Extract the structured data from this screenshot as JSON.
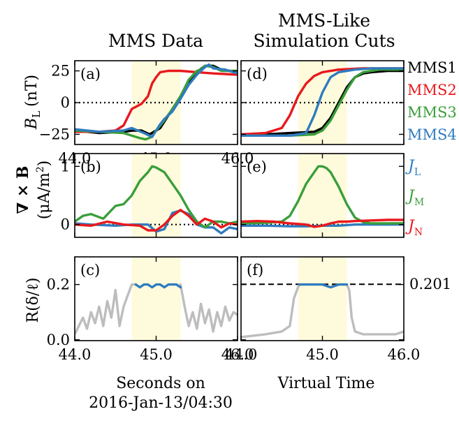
{
  "titles": {
    "left": "MMS Data",
    "right_line1": "MMS-Like",
    "right_line2": "Simulation Cuts"
  },
  "ylabels": {
    "a": "B",
    "a_sub": "L",
    "a_unit": "(nT)",
    "b": "∇ × B",
    "b_unit": "(μA/m",
    "b_unit_sup": "2",
    "b_unit_close": ")",
    "c": "R(δ/ℓ)"
  },
  "xlabels": {
    "left_line1": "Seconds on",
    "left_line2": "2016-Jan-13/04:30",
    "right": "Virtual Time"
  },
  "legend_spacecraft": [
    {
      "label": "MMS1",
      "color": "#000000"
    },
    {
      "label": "MMS2",
      "color": "#e8191c"
    },
    {
      "label": "MMS3",
      "color": "#3a9e3a"
    },
    {
      "label": "MMS4",
      "color": "#2f7bbf"
    }
  ],
  "legend_currents": [
    {
      "sym": "J",
      "sub": "L",
      "color": "#2f7bbf"
    },
    {
      "sym": "J",
      "sub": "M",
      "color": "#3a9e3a"
    },
    {
      "sym": "J",
      "sub": "N",
      "color": "#e8191c"
    }
  ],
  "chart_data": [
    {
      "panel": "a",
      "type": "line",
      "title": "MMS Data",
      "ylabel": "B_L (nT)",
      "xlim": [
        44.0,
        46.0
      ],
      "ylim": [
        -33,
        33
      ],
      "yticks": [
        -25,
        0,
        25
      ],
      "ytick_labels": [
        "−25",
        "0",
        "25"
      ],
      "xticks": [
        44.0,
        45.0,
        46.0
      ],
      "xtick_labels": [
        "44.0",
        "45.0",
        "46.0"
      ],
      "highlight_span": [
        44.7,
        45.3
      ],
      "reference_line": 0,
      "series": [
        {
          "name": "MMS1",
          "color": "#000000",
          "x": [
            44.0,
            44.3,
            44.6,
            44.72,
            44.82,
            44.92,
            45.0,
            45.05,
            45.1,
            45.2,
            45.3,
            45.4,
            45.5,
            45.6,
            45.7,
            45.8,
            46.0
          ],
          "y": [
            -22,
            -24,
            -23,
            -22,
            -22,
            -25,
            -22,
            -20,
            -15,
            -5,
            5,
            15,
            24,
            29,
            29,
            26,
            24
          ]
        },
        {
          "name": "MMS2",
          "color": "#e8191c",
          "x": [
            44.0,
            44.3,
            44.5,
            44.6,
            44.7,
            44.82,
            44.9,
            44.95,
            45.0,
            45.05,
            45.15,
            45.3,
            45.5,
            45.7,
            46.0
          ],
          "y": [
            -23,
            -23,
            -22,
            -18,
            -5,
            -1,
            5,
            15,
            20,
            24,
            25,
            25,
            24,
            23,
            22
          ]
        },
        {
          "name": "MMS3",
          "color": "#3a9e3a",
          "x": [
            44.0,
            44.3,
            44.6,
            44.7,
            44.8,
            44.87,
            44.95,
            45.0,
            45.1,
            45.2,
            45.3,
            45.4,
            45.5,
            45.55,
            45.6,
            45.7,
            45.8,
            46.0
          ],
          "y": [
            -22,
            -23,
            -24,
            -26,
            -28,
            -29,
            -27,
            -22,
            -14,
            -5,
            5,
            18,
            25,
            26,
            29,
            28,
            25,
            25
          ]
        },
        {
          "name": "MMS4",
          "color": "#2f7bbf",
          "x": [
            44.0,
            44.3,
            44.6,
            44.7,
            44.85,
            44.95,
            45.0,
            45.05,
            45.1,
            45.2,
            45.3,
            45.4,
            45.5,
            45.6,
            45.65,
            45.7,
            45.85,
            46.0
          ],
          "y": [
            -21,
            -23,
            -22,
            -20,
            -24,
            -27,
            -22,
            -17,
            -13,
            -7,
            3,
            14,
            22,
            28,
            30,
            27,
            26,
            23
          ]
        }
      ]
    },
    {
      "panel": "b",
      "type": "line",
      "ylabel": "∇ × B (μA/m²)",
      "xlim": [
        44.0,
        46.0
      ],
      "ylim": [
        -0.22,
        1.22
      ],
      "yticks": [
        0,
        1
      ],
      "ytick_labels": [
        "0",
        "1"
      ],
      "xticks": [
        44.0,
        45.0,
        46.0
      ],
      "highlight_span": [
        44.7,
        45.3
      ],
      "reference_line": 0,
      "series": [
        {
          "name": "J_L",
          "color": "#2f7bbf",
          "x": [
            44.0,
            44.2,
            44.5,
            44.7,
            44.9,
            45.0,
            45.1,
            45.2,
            45.3,
            45.4,
            45.5,
            45.6,
            45.7,
            45.8,
            45.9,
            46.0
          ],
          "y": [
            0.02,
            0.0,
            -0.02,
            0.0,
            0.0,
            -0.12,
            -0.08,
            0.2,
            0.24,
            0.18,
            0.0,
            -0.05,
            -0.05,
            -0.15,
            -0.05,
            -0.08
          ]
        },
        {
          "name": "J_M",
          "color": "#3a9e3a",
          "x": [
            44.0,
            44.1,
            44.2,
            44.35,
            44.5,
            44.6,
            44.7,
            44.8,
            44.9,
            44.95,
            45.0,
            45.1,
            45.2,
            45.3,
            45.4,
            45.5,
            45.6,
            45.7,
            45.8,
            45.9,
            46.0
          ],
          "y": [
            0.05,
            0.15,
            0.18,
            0.1,
            0.32,
            0.35,
            0.5,
            0.75,
            0.9,
            1.0,
            0.98,
            0.9,
            0.7,
            0.5,
            0.25,
            0.05,
            -0.05,
            0.05,
            0.05,
            0.02,
            0.05
          ]
        },
        {
          "name": "J_N",
          "color": "#e8191c",
          "x": [
            44.0,
            44.2,
            44.4,
            44.6,
            44.8,
            44.9,
            45.0,
            45.1,
            45.2,
            45.3,
            45.4,
            45.5,
            45.6,
            45.7,
            45.8,
            45.9,
            46.0
          ],
          "y": [
            0.0,
            -0.02,
            0.05,
            0.0,
            -0.02,
            -0.1,
            -0.1,
            0.0,
            0.15,
            0.25,
            0.15,
            0.0,
            0.1,
            0.05,
            -0.05,
            0.02,
            0.0
          ]
        }
      ]
    },
    {
      "panel": "c",
      "type": "line",
      "ylabel": "R(δ/ℓ)",
      "xlim": [
        44.0,
        46.0
      ],
      "ylim": [
        -0.003,
        0.3
      ],
      "yticks": [
        0.0,
        0.2
      ],
      "ytick_labels": [
        "0.0",
        "0.2"
      ],
      "xticks": [
        44.0,
        45.0,
        46.0
      ],
      "xtick_labels": [
        "44.0",
        "45.0",
        "46.0"
      ],
      "xlabel": "Seconds on 2016-Jan-13/04:30",
      "highlight_span": [
        44.7,
        45.3
      ],
      "series": [
        {
          "name": "outside",
          "color": "#bdbdbd",
          "x": [
            44.0,
            44.05,
            44.1,
            44.15,
            44.2,
            44.25,
            44.3,
            44.35,
            44.4,
            44.45,
            44.5,
            44.55,
            44.6,
            44.65,
            44.7,
            44.75
          ],
          "y": [
            0.02,
            0.05,
            0.08,
            0.04,
            0.1,
            0.06,
            0.12,
            0.05,
            0.14,
            0.08,
            0.18,
            0.05,
            0.12,
            0.16,
            0.2,
            0.2
          ]
        },
        {
          "name": "outside_late",
          "color": "#bdbdbd",
          "x": [
            45.3,
            45.35,
            45.4,
            45.45,
            45.5,
            45.55,
            45.6,
            45.65,
            45.7,
            45.75,
            45.8,
            45.85,
            45.9,
            45.95,
            46.0
          ],
          "y": [
            0.2,
            0.12,
            0.05,
            0.1,
            0.04,
            0.13,
            0.06,
            0.11,
            0.03,
            0.1,
            0.05,
            0.12,
            0.07,
            0.1,
            0.09
          ]
        },
        {
          "name": "inside",
          "color": "#2f7bbf",
          "x": [
            44.75,
            44.8,
            44.85,
            44.9,
            44.95,
            45.0,
            45.05,
            45.1,
            45.15,
            45.2,
            45.25,
            45.3
          ],
          "y": [
            0.2,
            0.19,
            0.2,
            0.2,
            0.19,
            0.2,
            0.2,
            0.19,
            0.2,
            0.2,
            0.2,
            0.19
          ]
        }
      ]
    },
    {
      "panel": "d",
      "type": "line",
      "title": "MMS-Like Simulation Cuts",
      "xlim": [
        44.0,
        46.0
      ],
      "ylim": [
        -33,
        33
      ],
      "yticks": [
        -25,
        0,
        25
      ],
      "xticks": [
        44.0,
        45.0,
        46.0
      ],
      "highlight_span": [
        44.7,
        45.3
      ],
      "reference_line": 0,
      "series": [
        {
          "name": "MMS1",
          "color": "#000000",
          "x": [
            44.0,
            44.3,
            44.6,
            44.9,
            45.0,
            45.1,
            45.2,
            45.3,
            45.4,
            45.5,
            45.6,
            45.8,
            46.0
          ],
          "y": [
            -25,
            -25,
            -24,
            -23,
            -20,
            -12,
            0,
            12,
            20,
            23,
            24,
            25,
            25
          ]
        },
        {
          "name": "MMS2",
          "color": "#e8191c",
          "x": [
            44.0,
            44.3,
            44.5,
            44.6,
            44.7,
            44.8,
            44.9,
            45.0,
            45.2,
            45.5,
            46.0
          ],
          "y": [
            -25,
            -24,
            -20,
            -10,
            5,
            15,
            21,
            24,
            26,
            27,
            27
          ]
        },
        {
          "name": "MMS3",
          "color": "#3a9e3a",
          "x": [
            44.0,
            44.3,
            44.6,
            44.9,
            45.0,
            45.1,
            45.2,
            45.3,
            45.4,
            45.5,
            45.7,
            46.0
          ],
          "y": [
            -26,
            -26,
            -26,
            -25,
            -22,
            -14,
            -2,
            10,
            20,
            24,
            26,
            26
          ]
        },
        {
          "name": "MMS4",
          "color": "#2f7bbf",
          "x": [
            44.0,
            44.3,
            44.6,
            44.8,
            44.9,
            45.0,
            45.1,
            45.2,
            45.4,
            45.6,
            46.0
          ],
          "y": [
            -26,
            -26,
            -26,
            -24,
            -10,
            8,
            20,
            24,
            26,
            27,
            27
          ]
        }
      ]
    },
    {
      "panel": "e",
      "type": "line",
      "xlim": [
        44.0,
        46.0
      ],
      "ylim": [
        -0.22,
        1.22
      ],
      "yticks": [
        0,
        1
      ],
      "xticks": [
        44.0,
        45.0,
        46.0
      ],
      "highlight_span": [
        44.7,
        45.3
      ],
      "reference_line": 0,
      "series": [
        {
          "name": "J_L",
          "color": "#2f7bbf",
          "x": [
            44.0,
            44.3,
            44.6,
            44.8,
            45.0,
            45.2,
            45.4,
            45.6,
            46.0
          ],
          "y": [
            -0.02,
            -0.02,
            -0.03,
            -0.03,
            -0.02,
            -0.02,
            0.0,
            0.0,
            0.0
          ]
        },
        {
          "name": "J_M",
          "color": "#3a9e3a",
          "x": [
            44.0,
            44.3,
            44.5,
            44.6,
            44.7,
            44.8,
            44.9,
            44.95,
            45.0,
            45.05,
            45.1,
            45.2,
            45.3,
            45.4,
            45.5,
            45.6,
            45.8,
            46.0
          ],
          "y": [
            0.02,
            0.03,
            0.05,
            0.15,
            0.4,
            0.7,
            0.9,
            1.0,
            1.0,
            0.97,
            0.9,
            0.65,
            0.35,
            0.12,
            0.04,
            0.02,
            0.02,
            0.02
          ]
        },
        {
          "name": "J_N",
          "color": "#e8191c",
          "x": [
            44.0,
            44.2,
            44.4,
            44.6,
            44.8,
            44.9,
            45.0,
            45.1,
            45.2,
            45.3,
            45.4,
            45.6,
            45.8,
            46.0
          ],
          "y": [
            0.05,
            0.06,
            0.05,
            0.02,
            0.0,
            -0.04,
            -0.02,
            0.02,
            0.05,
            0.05,
            0.06,
            0.07,
            0.08,
            0.08
          ]
        }
      ]
    },
    {
      "panel": "f",
      "type": "line",
      "xlim": [
        44.0,
        46.0
      ],
      "ylim": [
        -0.003,
        0.3
      ],
      "yticks": [
        0.0,
        0.2
      ],
      "xticks": [
        44.0,
        45.0,
        46.0
      ],
      "xtick_labels": [
        "44.0",
        "45.0",
        "46.0"
      ],
      "xlabel": "Virtual Time",
      "highlight_span": [
        44.7,
        45.3
      ],
      "reference_line": 0.201,
      "reference_label": "0.201",
      "series": [
        {
          "name": "outside",
          "color": "#bdbdbd",
          "x": [
            44.0,
            44.3,
            44.5,
            44.6,
            44.65,
            44.7,
            44.72
          ],
          "y": [
            0.01,
            0.02,
            0.03,
            0.05,
            0.15,
            0.19,
            0.2
          ]
        },
        {
          "name": "outside_late",
          "color": "#bdbdbd",
          "x": [
            45.3,
            45.33,
            45.36,
            45.4,
            45.5,
            45.7,
            45.9,
            46.0
          ],
          "y": [
            0.2,
            0.18,
            0.08,
            0.03,
            0.02,
            0.02,
            0.02,
            0.03
          ]
        },
        {
          "name": "inside",
          "color": "#2f7bbf",
          "x": [
            44.72,
            44.8,
            44.9,
            45.0,
            45.1,
            45.2,
            45.3
          ],
          "y": [
            0.2,
            0.2,
            0.2,
            0.2,
            0.19,
            0.2,
            0.2
          ]
        }
      ]
    }
  ]
}
